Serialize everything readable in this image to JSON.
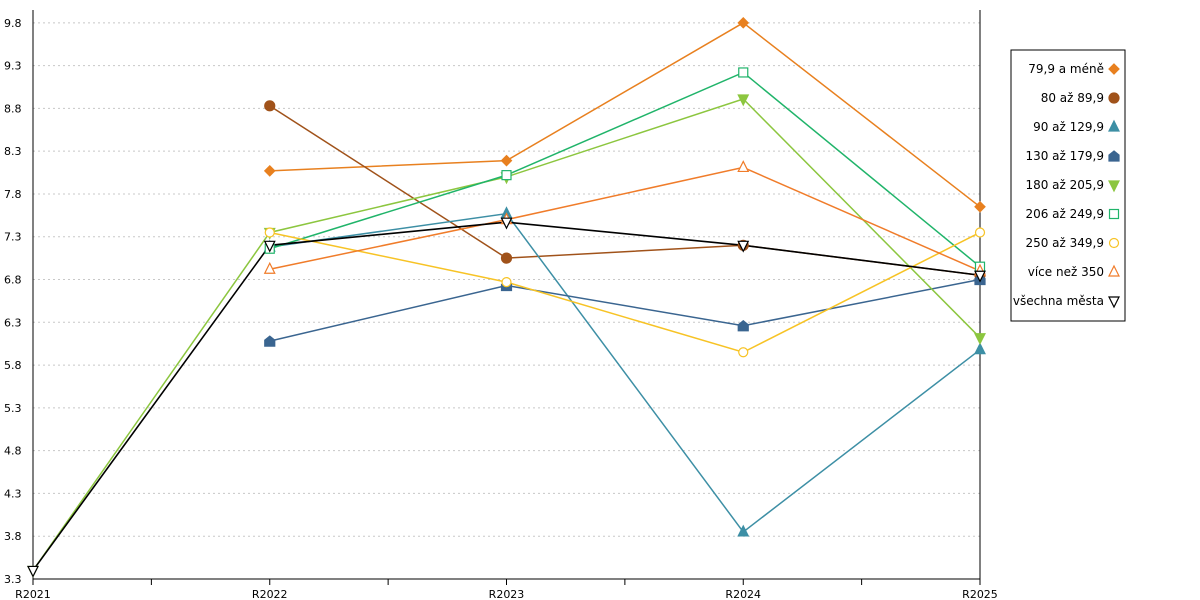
{
  "chart_data": {
    "type": "line",
    "categories": [
      "R2021",
      "R2022",
      "R2023",
      "R2024",
      "R2025"
    ],
    "ylim": [
      3.3,
      9.95
    ],
    "yticks": [
      "3.3",
      "3.8",
      "4.3",
      "4.8",
      "5.3",
      "5.8",
      "6.3",
      "6.8",
      "7.3",
      "7.8",
      "8.3",
      "8.8",
      "9.3",
      "9.8"
    ],
    "grid": true,
    "legend_position": "right",
    "series": [
      {
        "name": "79,9 a méně",
        "color": "#e8801f",
        "marker": "diamond",
        "values": [
          null,
          8.07,
          8.19,
          9.8,
          7.65
        ]
      },
      {
        "name": "80 až 89,9",
        "color": "#a0521a",
        "marker": "circle-filled",
        "values": [
          null,
          8.83,
          7.05,
          7.2,
          6.85
        ]
      },
      {
        "name": "90 až 129,9",
        "color": "#3d8fa5",
        "marker": "triangle-up",
        "values": [
          null,
          7.18,
          7.57,
          3.85,
          5.98
        ]
      },
      {
        "name": "130 až 179,9",
        "color": "#3a6590",
        "marker": "pentagon",
        "values": [
          null,
          6.08,
          6.73,
          6.26,
          6.8
        ]
      },
      {
        "name": "180 až 205,9",
        "color": "#8cc63f",
        "marker": "triangle-down",
        "values": [
          3.4,
          7.35,
          8.0,
          8.91,
          6.12
        ]
      },
      {
        "name": "206 až 249,9",
        "color": "#20b46a",
        "marker": "square-open",
        "values": [
          null,
          7.16,
          8.02,
          9.22,
          6.95
        ]
      },
      {
        "name": "250 až 349,9",
        "color": "#f7c325",
        "marker": "circle-open",
        "values": [
          null,
          7.35,
          6.77,
          5.95,
          7.35
        ]
      },
      {
        "name": "více než 350",
        "color": "#f07c2a",
        "marker": "triangle-up-open",
        "values": [
          null,
          6.92,
          7.5,
          8.11,
          6.9
        ]
      },
      {
        "name": "všechna města",
        "color": "#000000",
        "marker": "triangle-down-open",
        "values": [
          3.4,
          7.2,
          7.47,
          7.2,
          6.85
        ]
      }
    ]
  }
}
